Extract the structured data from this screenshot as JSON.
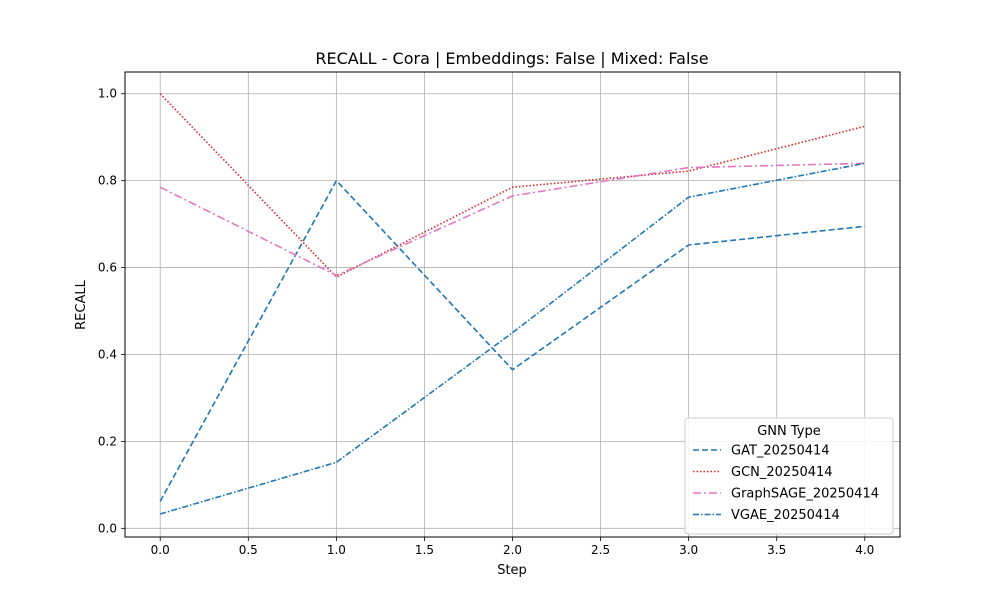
{
  "chart_data": {
    "type": "line",
    "title": "RECALL - Cora | Embeddings: False | Mixed: False",
    "xlabel": "Step",
    "ylabel": "RECALL",
    "xlim": [
      -0.2,
      4.2
    ],
    "ylim": [
      -0.02,
      1.05
    ],
    "xticks": [
      0.0,
      0.5,
      1.0,
      1.5,
      2.0,
      2.5,
      3.0,
      3.5,
      4.0
    ],
    "xtick_labels": [
      "0.0",
      "0.5",
      "1.0",
      "1.5",
      "2.0",
      "2.5",
      "3.0",
      "3.5",
      "4.0"
    ],
    "yticks": [
      0.0,
      0.2,
      0.4,
      0.6,
      0.8,
      1.0
    ],
    "ytick_labels": [
      "0.0",
      "0.2",
      "0.4",
      "0.6",
      "0.8",
      "1.0"
    ],
    "grid": true,
    "legend": {
      "title": "GNN Type",
      "placement": "lower-right"
    },
    "x": [
      0,
      1,
      2,
      3,
      4
    ],
    "series": [
      {
        "name": "GAT_20250414",
        "values": [
          0.062,
          0.8,
          0.365,
          0.652,
          0.695
        ],
        "color": "#1f77b4",
        "dash": "6,3"
      },
      {
        "name": "GCN_20250414",
        "values": [
          1.0,
          0.578,
          0.785,
          0.822,
          0.925
        ],
        "color": "#d62728",
        "dash": "1.5,2"
      },
      {
        "name": "GraphSAGE_20250414",
        "values": [
          0.785,
          0.582,
          0.765,
          0.83,
          0.84
        ],
        "color": "#e377c2",
        "dash": "8,3,2,3"
      },
      {
        "name": "VGAE_20250414",
        "values": [
          0.033,
          0.152,
          0.45,
          0.762,
          0.84
        ],
        "color": "#1f77b4",
        "dash": "6,2,1.5,2"
      }
    ]
  }
}
